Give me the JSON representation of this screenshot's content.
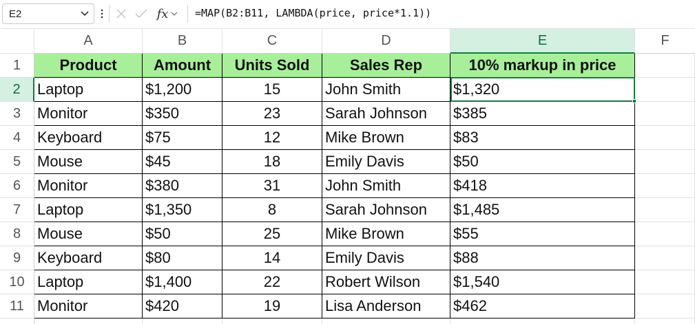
{
  "formula_bar": {
    "name_box": "E2",
    "fx_label": "fx",
    "formula": "=MAP(B2:B11, LAMBDA(price, price*1.1))"
  },
  "columns": [
    "A",
    "B",
    "C",
    "D",
    "E",
    "F"
  ],
  "rows": [
    "1",
    "2",
    "3",
    "4",
    "5",
    "6",
    "7",
    "8",
    "9",
    "10",
    "11"
  ],
  "table": {
    "headers": [
      "Product",
      "Amount",
      "Units Sold",
      "Sales Rep",
      "10% markup in price"
    ],
    "rows": [
      [
        "Laptop",
        "$1,200",
        "15",
        "John Smith",
        "$1,320"
      ],
      [
        "Monitor",
        "$350",
        "23",
        "Sarah Johnson",
        "$385"
      ],
      [
        "Keyboard",
        "$75",
        "12",
        "Mike Brown",
        "$83"
      ],
      [
        "Mouse",
        "$45",
        "18",
        "Emily Davis",
        "$50"
      ],
      [
        "Monitor",
        "$380",
        "31",
        "John Smith",
        "$418"
      ],
      [
        "Laptop",
        "$1,350",
        "8",
        "Sarah Johnson",
        "$1,485"
      ],
      [
        "Mouse",
        "$50",
        "25",
        "Mike Brown",
        "$55"
      ],
      [
        "Keyboard",
        "$80",
        "14",
        "Emily Davis",
        "$88"
      ],
      [
        "Laptop",
        "$1,400",
        "22",
        "Robert Wilson",
        "$1,540"
      ],
      [
        "Monitor",
        "$420",
        "19",
        "Lisa Anderson",
        "$462"
      ]
    ]
  },
  "selection": {
    "active_cell": "E2",
    "active_column": "E",
    "active_row": "2"
  },
  "colors": {
    "header_fill": "#a8ef9a",
    "selection": "#107c41",
    "selected_header": "#d3f0e0"
  }
}
